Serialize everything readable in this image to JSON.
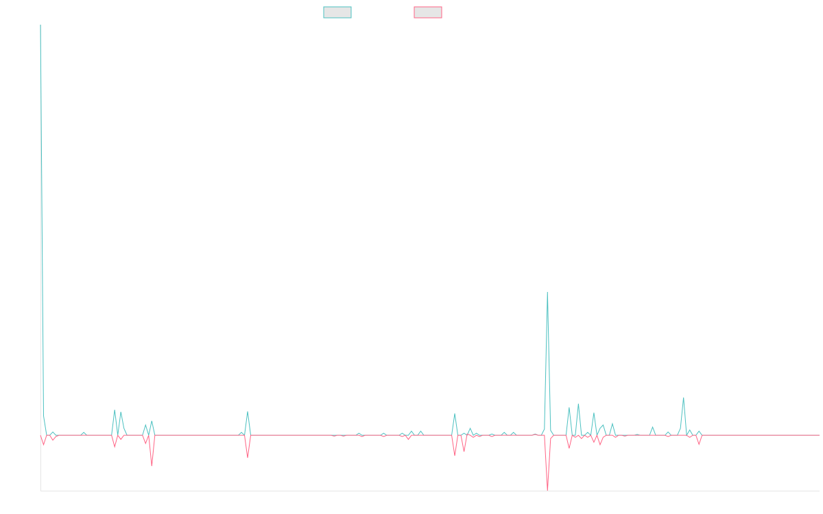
{
  "chart_data": {
    "type": "line",
    "categories": [
      null,
      null,
      null,
      null,
      null,
      null,
      null,
      null,
      null,
      null,
      null,
      null,
      null,
      null,
      null,
      null,
      null,
      null,
      null,
      null,
      null,
      null,
      null,
      null,
      null,
      null,
      null,
      null,
      null,
      null,
      null,
      null,
      null,
      null,
      null,
      null,
      null,
      null,
      null,
      null,
      null,
      null,
      null,
      null,
      null,
      null,
      null,
      null,
      null,
      null,
      null,
      null,
      null,
      null,
      null,
      null,
      null,
      null,
      null,
      null,
      null,
      null,
      null,
      null,
      null,
      null,
      null,
      null,
      null,
      null,
      null,
      null,
      null,
      null,
      null,
      null,
      null,
      null,
      null,
      null,
      null,
      null,
      null,
      null,
      null,
      null,
      null,
      null,
      null,
      null,
      null,
      null,
      null,
      null,
      null,
      null,
      null,
      null,
      null,
      null,
      null,
      null,
      null,
      null,
      null,
      null,
      null,
      null,
      null,
      null,
      null,
      null,
      null,
      null,
      null,
      null,
      null,
      null,
      null,
      null,
      null,
      null,
      null,
      null,
      null,
      null,
      null,
      null,
      null,
      null,
      null,
      null,
      null,
      null,
      null,
      null,
      null,
      null,
      null,
      null,
      null,
      null,
      null,
      null,
      null,
      null,
      null,
      null,
      null,
      null,
      null,
      null,
      null,
      null,
      null,
      null,
      null,
      null,
      null,
      null,
      null,
      null,
      null,
      null,
      null,
      null,
      null,
      null,
      null,
      null,
      null,
      null,
      null,
      null,
      null,
      null,
      null,
      null,
      null,
      null,
      null,
      null,
      null,
      null,
      null,
      null,
      null,
      null,
      null,
      null,
      null,
      null,
      null,
      null,
      null,
      null,
      null,
      null,
      null,
      null,
      null,
      null,
      null,
      null,
      null,
      null,
      null,
      null,
      null,
      null,
      null,
      null,
      null,
      null,
      null,
      null,
      null,
      null,
      null,
      null,
      null,
      null,
      null,
      null,
      null,
      null,
      null,
      null,
      null,
      null,
      null,
      null,
      null,
      null,
      null,
      null,
      null,
      null,
      null,
      null,
      null,
      null,
      null,
      null,
      null,
      null,
      null,
      null,
      null,
      null,
      null,
      null,
      null
    ],
    "series": [
      {
        "color": "#4bc0c0",
        "values": [
          100,
          4.7,
          0,
          0,
          0.8,
          0,
          0,
          0,
          0,
          0,
          0,
          0,
          0,
          0,
          0.7,
          0,
          0,
          0,
          0,
          0,
          0,
          0,
          0,
          0,
          6.2,
          0,
          5.7,
          1.7,
          0,
          0,
          0,
          0,
          0,
          0,
          2.5,
          0,
          3.5,
          0,
          0,
          0,
          0,
          0,
          0,
          0,
          0,
          0,
          0,
          0,
          0,
          0,
          0,
          0,
          0,
          0,
          0,
          0,
          0,
          0,
          0,
          0,
          0,
          0,
          0,
          0,
          0,
          0.7,
          0,
          5.8,
          0,
          0,
          0,
          0,
          0,
          0,
          0,
          0,
          0,
          0,
          0,
          0,
          0,
          0,
          0,
          0,
          0,
          0,
          0,
          0,
          0,
          0,
          0,
          0,
          0,
          0,
          0,
          0,
          0,
          0,
          0,
          0,
          0,
          0,
          0,
          0.5,
          0,
          0,
          0,
          0,
          0,
          0,
          0,
          0.5,
          0,
          0,
          0,
          0,
          0,
          0.5,
          0,
          0,
          1,
          0,
          0,
          1,
          0,
          0,
          0,
          0,
          0,
          0,
          0,
          0,
          0,
          0,
          5.3,
          0,
          0,
          0.5,
          0,
          1.7,
          0,
          0.5,
          0,
          0,
          0,
          0,
          0.3,
          0,
          0,
          0,
          0.7,
          0,
          0,
          0.7,
          0,
          0,
          0,
          0,
          0,
          0,
          0.3,
          0,
          0,
          1.5,
          34.9,
          1.2,
          0,
          0,
          0,
          0,
          0,
          6.8,
          0,
          0,
          7.7,
          0,
          0,
          0.7,
          0,
          5.5,
          0,
          1.7,
          2.5,
          0,
          0,
          2.8,
          0,
          0,
          0,
          0,
          0,
          0,
          0,
          0.2,
          0,
          0,
          0,
          0,
          2,
          0,
          0,
          0,
          0,
          0.8,
          0,
          0,
          0,
          1.7,
          9.2,
          0,
          1.3,
          0,
          0,
          1,
          0,
          0,
          0,
          0,
          0,
          0,
          0,
          0,
          0,
          0,
          0,
          0,
          0,
          0,
          0,
          0,
          0,
          0,
          0,
          0,
          0,
          0,
          0,
          0,
          0,
          0,
          0,
          0,
          0,
          0,
          0,
          0,
          0,
          0,
          0,
          0,
          0,
          0,
          0
        ]
      },
      {
        "color": "#ff6384",
        "values": [
          0,
          -2.3,
          0,
          0,
          -1.2,
          -0.3,
          0,
          0,
          0,
          0,
          0,
          0,
          0,
          0,
          0,
          0,
          0,
          0,
          0,
          0,
          0,
          0,
          0,
          0,
          -2.8,
          0,
          -1,
          0,
          0,
          0,
          0,
          0,
          0,
          0,
          -2,
          0,
          -7.5,
          0,
          0,
          0,
          0,
          0,
          0,
          0,
          0,
          0,
          0,
          0,
          0,
          0,
          0,
          0,
          0,
          0,
          0,
          0,
          0,
          0,
          0,
          0,
          0,
          0,
          0,
          0,
          0,
          0,
          0,
          -5.5,
          0,
          0,
          0,
          0,
          0,
          0,
          0,
          0,
          0,
          0,
          0,
          0,
          0,
          0,
          0,
          0,
          0,
          0,
          0,
          0,
          0,
          0,
          0,
          0,
          0,
          0,
          0,
          -0.2,
          0,
          0,
          -0.2,
          0,
          0,
          0,
          0,
          0,
          -0.3,
          0,
          0,
          0,
          0,
          0,
          0,
          -0.3,
          0,
          0,
          0,
          0,
          0,
          -0.3,
          0,
          -1,
          0,
          0,
          0,
          0,
          0,
          0,
          0,
          0,
          0,
          0,
          0,
          0,
          0,
          0,
          -5,
          0,
          0,
          -4,
          0.3,
          0,
          -0.5,
          0,
          -0.3,
          0,
          0,
          0,
          -0.3,
          0,
          0,
          0,
          0,
          0,
          0,
          0,
          0,
          0,
          0,
          0,
          0,
          0,
          0.2,
          0,
          0,
          0,
          -13.5,
          -0.8,
          0,
          0,
          0,
          0,
          0,
          -3.2,
          0,
          -0.5,
          0,
          -0.8,
          0,
          -0.5,
          0,
          -1.7,
          0,
          -2.3,
          -0.5,
          0,
          0,
          0,
          -0.5,
          0,
          0,
          -0.2,
          0,
          0,
          0,
          0,
          0,
          0,
          0,
          0,
          0,
          0,
          0,
          0,
          0,
          -0.3,
          0,
          0,
          0,
          0,
          0,
          0,
          -0.5,
          0,
          0,
          -2.2,
          0,
          0,
          0,
          0,
          0,
          0,
          0,
          0,
          0,
          0,
          0,
          0,
          0,
          0,
          0,
          0,
          0,
          0,
          0,
          0,
          0,
          0,
          0,
          0,
          0,
          0,
          0,
          0,
          0,
          0,
          0,
          0,
          0,
          0,
          0,
          0,
          0,
          0,
          0
        ]
      }
    ],
    "ylim": [
      -13.5,
      100
    ],
    "legend": "top"
  }
}
